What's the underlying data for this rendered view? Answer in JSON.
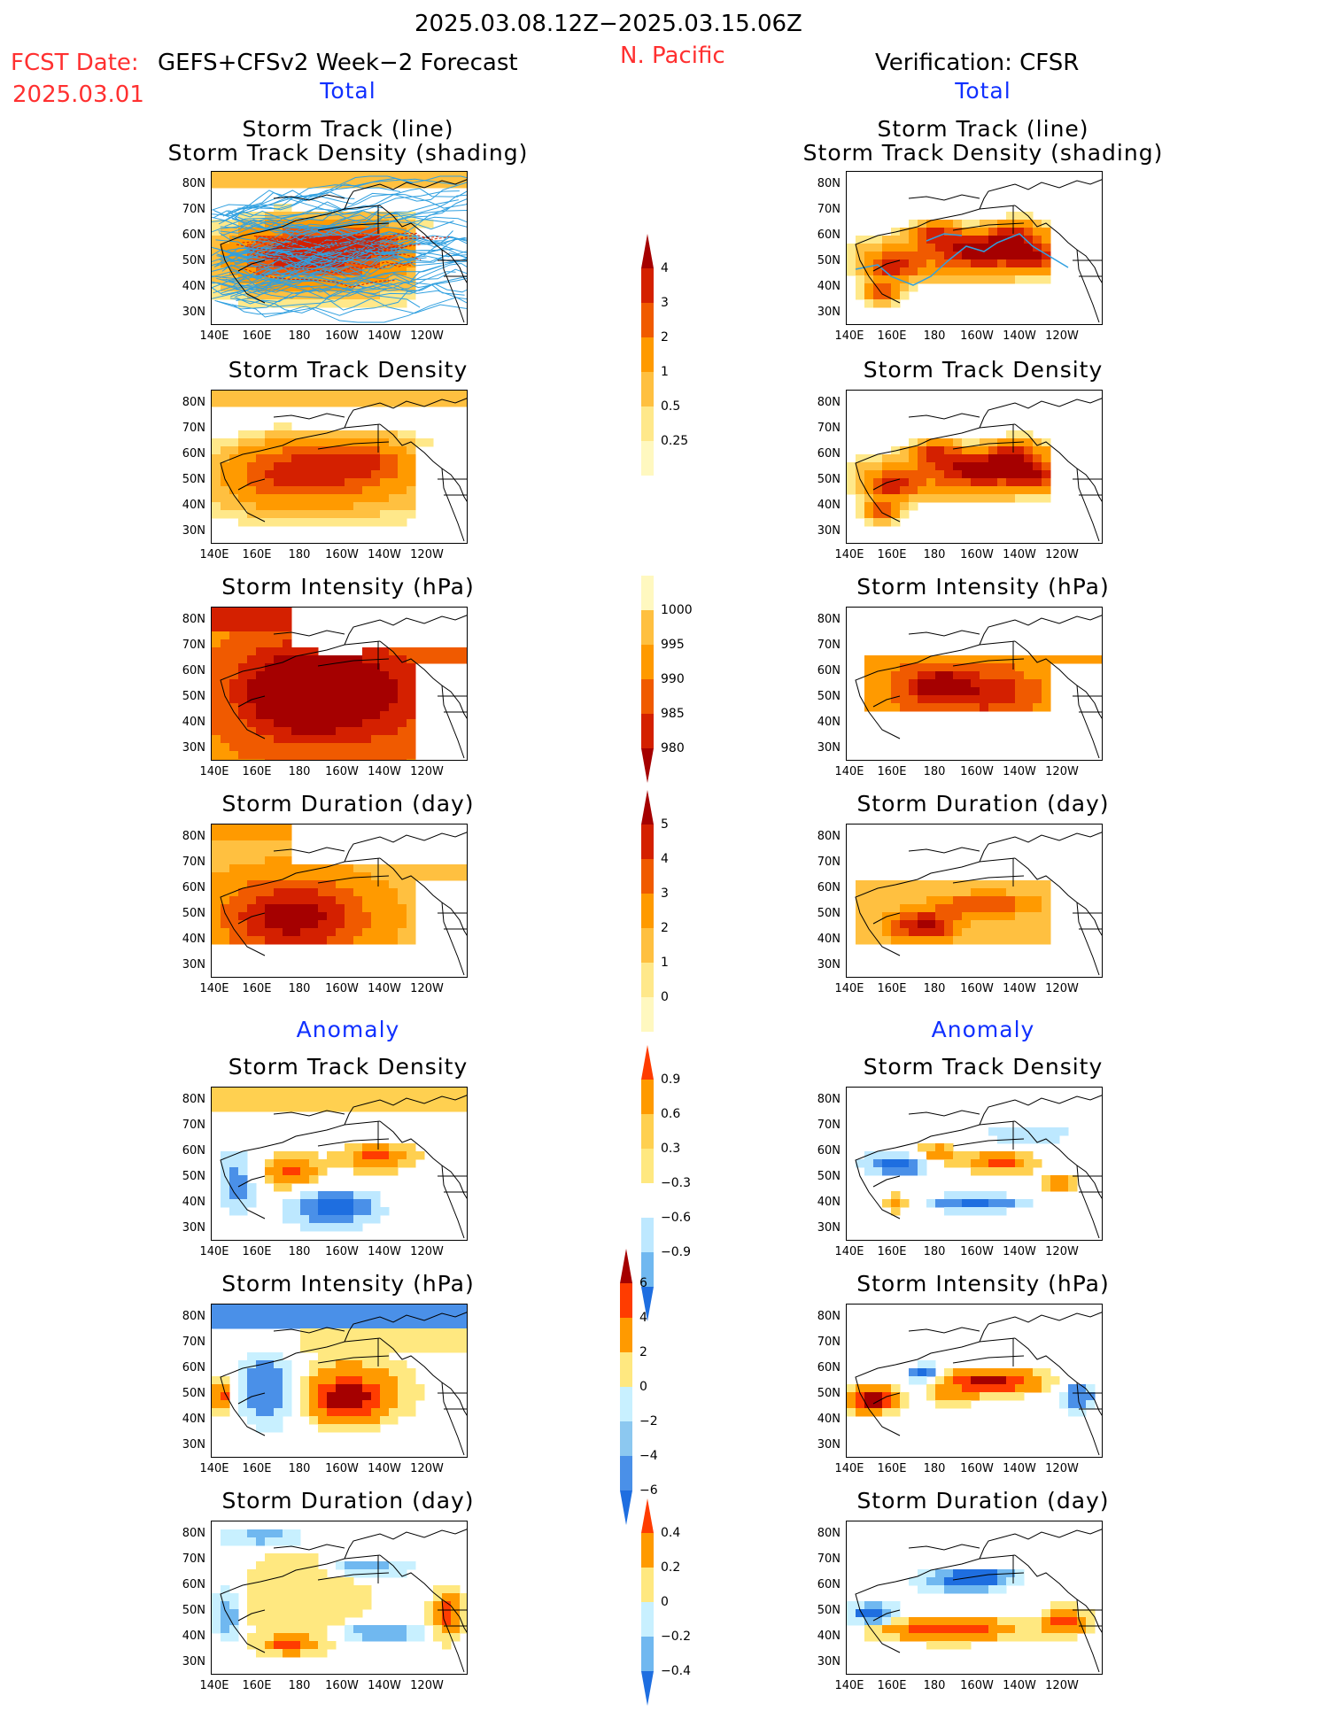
{
  "header": {
    "date_range": "2025.03.08.12Z−2025.03.15.06Z",
    "region": "N. Pacific",
    "fcst_label": "FCST Date:",
    "fcst_model": "GEFS+CFSv2 Week−2 Forecast",
    "fcst_date": "2025.03.01",
    "verification": "Verification: CFSR"
  },
  "sections": {
    "total": "Total",
    "anomaly": "Anomaly"
  },
  "columns": [
    {
      "key": "forecast",
      "total_label": "Total",
      "anomaly_label": "Anomaly"
    },
    {
      "key": "verification",
      "total_label": "Total",
      "anomaly_label": "Anomaly"
    }
  ],
  "panel_titles": {
    "track_line": "Storm Track (line)",
    "track_shade": "Storm Track Density (shading)",
    "density": "Storm Track Density",
    "intensity": "Storm Intensity (hPa)",
    "duration": "Storm Duration (day)"
  },
  "axes": {
    "lat_labels": [
      "80N",
      "70N",
      "60N",
      "50N",
      "40N",
      "30N"
    ],
    "lon_labels": [
      "140E",
      "160E",
      "180",
      "160W",
      "140W",
      "120W"
    ]
  },
  "colorbars": {
    "density": {
      "labels": [
        "4",
        "3",
        "2",
        "1",
        "0.5",
        "0.25"
      ],
      "colors": [
        "#a50000",
        "#d42000",
        "#f05a00",
        "#ff9a00",
        "#ffc040",
        "#ffe88a",
        "#fff8c0"
      ]
    },
    "intensity": {
      "labels": [
        "1000",
        "995",
        "990",
        "985",
        "980"
      ],
      "colors": [
        "#fff8c0",
        "#ffc040",
        "#ff9a00",
        "#f05a00",
        "#d42000",
        "#a50000"
      ]
    },
    "duration": {
      "labels": [
        "5",
        "4",
        "3",
        "2",
        "1",
        "0"
      ],
      "colors": [
        "#a50000",
        "#d42000",
        "#f05a00",
        "#ff9a00",
        "#ffc040",
        "#ffe88a",
        "#fff8c0"
      ]
    },
    "density_anom": {
      "labels": [
        "0.9",
        "0.6",
        "0.3",
        "−0.3",
        "−0.6",
        "−0.9"
      ],
      "colors": [
        "#ff3c00",
        "#ff9a00",
        "#ffd050",
        "#ffe880",
        "#ffffff",
        "#bde8ff",
        "#70b8f0",
        "#1e6ee0"
      ]
    },
    "intensity_anom": {
      "labels": [
        "6",
        "4",
        "2",
        "0",
        "−2",
        "−4",
        "−6"
      ],
      "colors": [
        "#a50000",
        "#ff3c00",
        "#ff9a00",
        "#ffe880",
        "#c8f0ff",
        "#8cc8f0",
        "#4a90e8",
        "#1e6ee0"
      ]
    },
    "duration_anom": {
      "labels": [
        "0.4",
        "0.2",
        "0",
        "−0.2",
        "−0.4"
      ],
      "colors": [
        "#ff3c00",
        "#ff9a00",
        "#ffe880",
        "#c8f0ff",
        "#70b8f0",
        "#1e6ee0"
      ]
    }
  },
  "colors": {
    "title_red": "#ff3030",
    "title_blue": "#1030ff",
    "track_line": "#30a0e0",
    "track_mean": "#d42000"
  }
}
